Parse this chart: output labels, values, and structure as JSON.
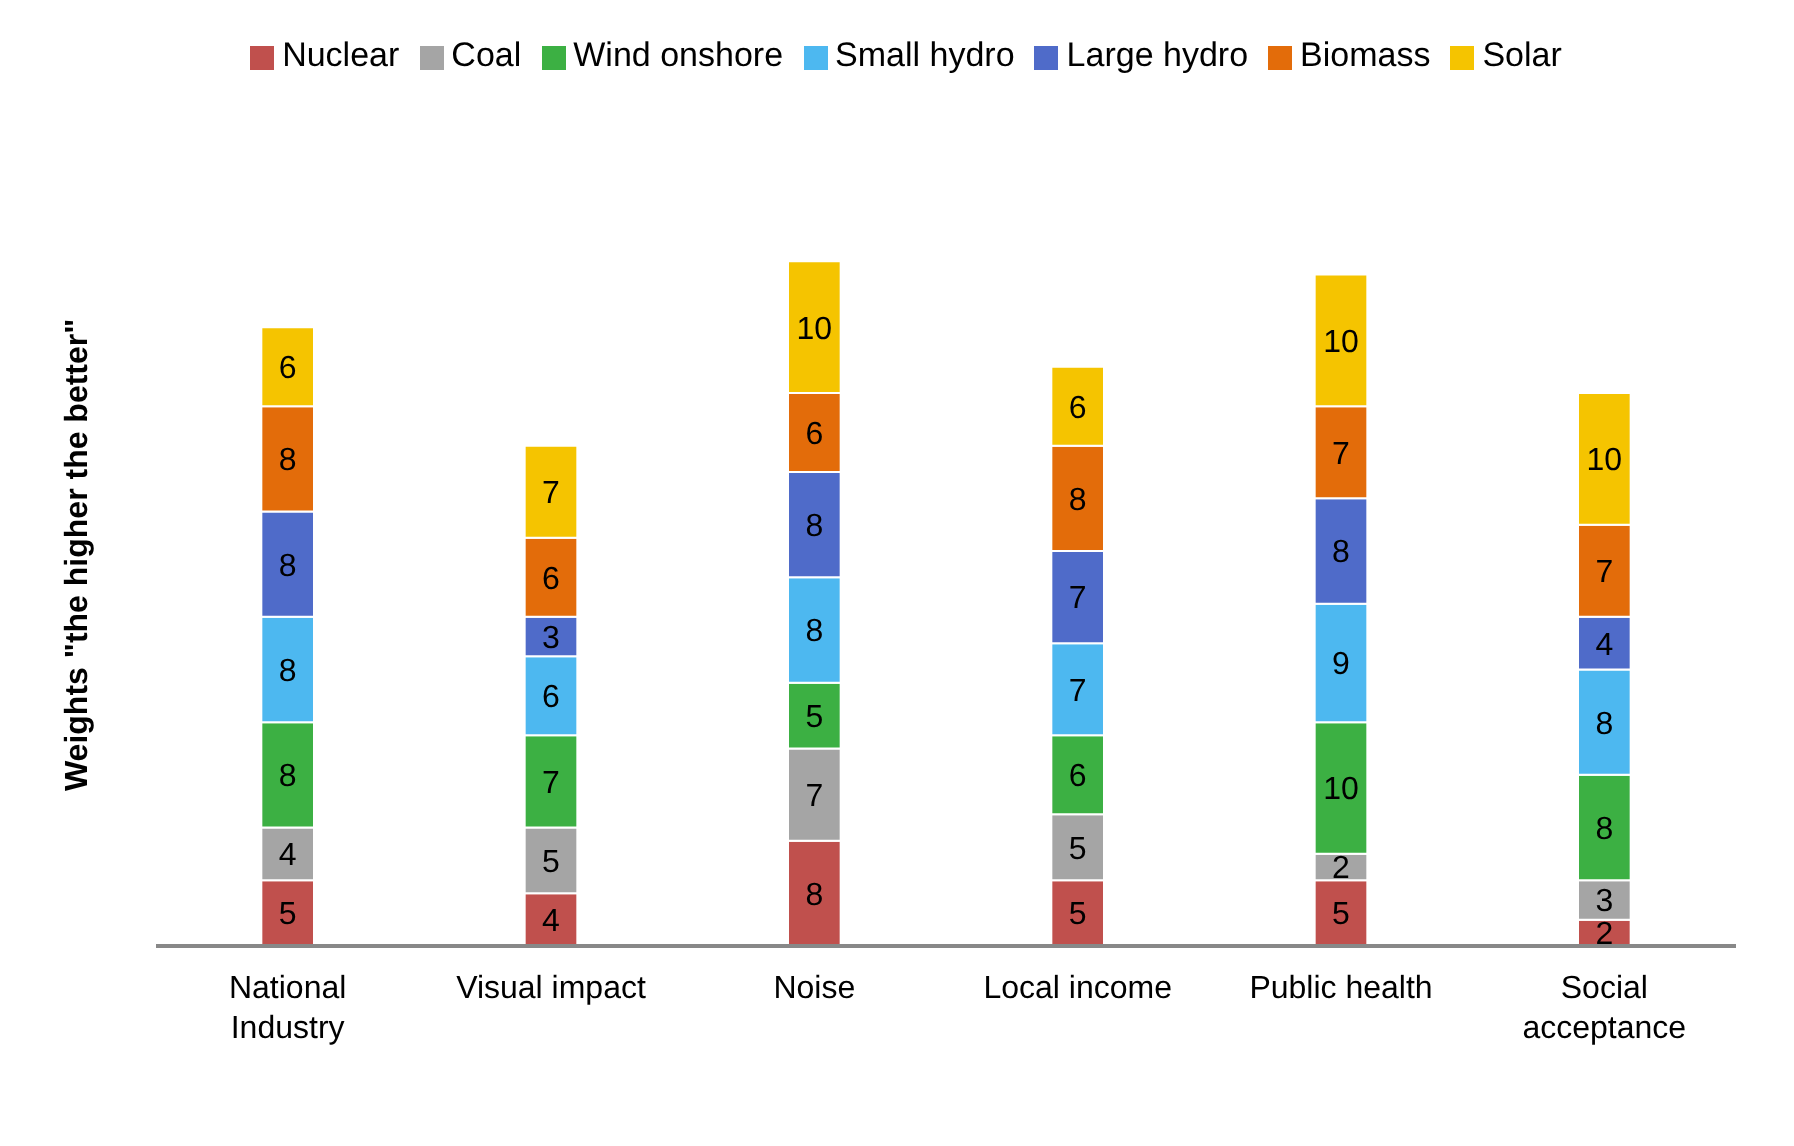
{
  "chart_data": {
    "type": "bar",
    "stacked": true,
    "ylabel": "Weights \"the higher the better\"",
    "categories": [
      "National Industry",
      "Visual impact",
      "Noise",
      "Local income",
      "Public health",
      "Social acceptance"
    ],
    "series": [
      {
        "name": "Nuclear",
        "color": "#c0504d",
        "values": [
          5,
          4,
          8,
          5,
          5,
          2
        ]
      },
      {
        "name": "Coal",
        "color": "#a5a5a5",
        "values": [
          4,
          5,
          7,
          5,
          2,
          3
        ]
      },
      {
        "name": "Wind onshore",
        "color": "#3cb043",
        "values": [
          8,
          7,
          5,
          6,
          10,
          8
        ]
      },
      {
        "name": "Small hydro",
        "color": "#4db8f0",
        "values": [
          8,
          6,
          8,
          7,
          9,
          8
        ]
      },
      {
        "name": "Large hydro",
        "color": "#4f6bc9",
        "values": [
          8,
          3,
          8,
          7,
          8,
          4
        ]
      },
      {
        "name": "Biomass",
        "color": "#e36c0a",
        "values": [
          8,
          6,
          6,
          8,
          7,
          7
        ]
      },
      {
        "name": "Solar",
        "color": "#f5c400",
        "values": [
          6,
          7,
          10,
          6,
          10,
          10
        ]
      }
    ],
    "data_labels": true,
    "legend": "top",
    "grid": false
  }
}
